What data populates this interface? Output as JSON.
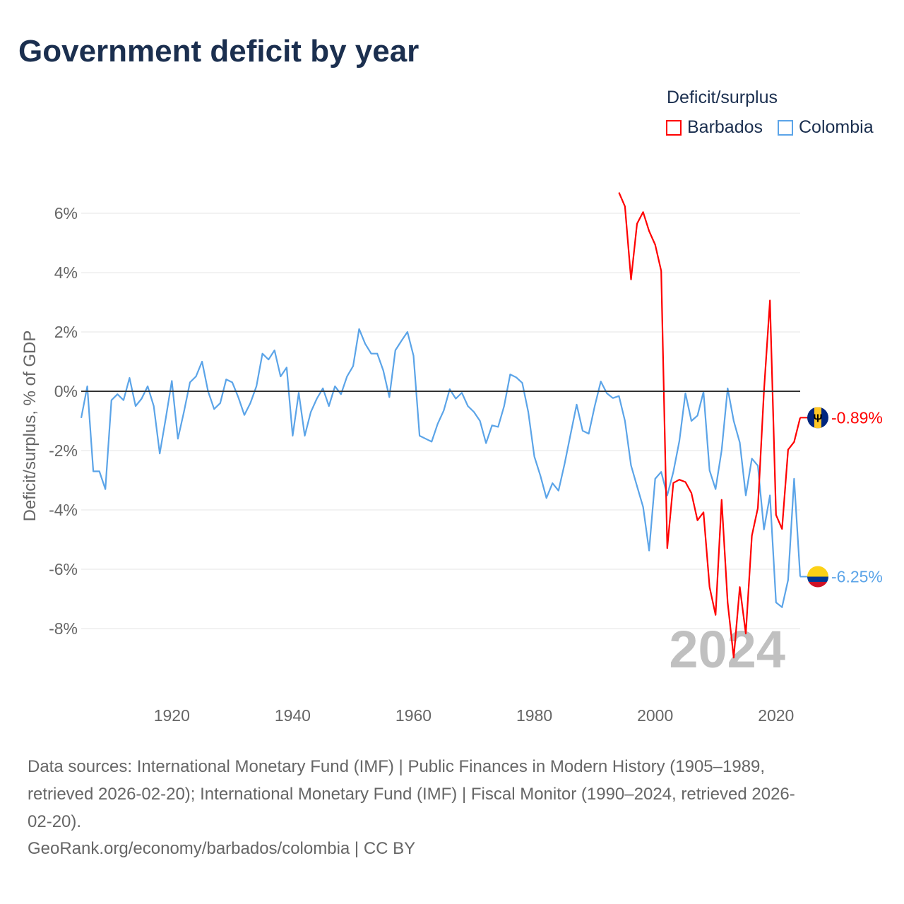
{
  "chart_data": {
    "type": "line",
    "title": "Government deficit by year",
    "xlabel": "",
    "ylabel": "Deficit/surplus, % of GDP",
    "xlim": [
      1905,
      2024
    ],
    "ylim": [
      -10,
      7
    ],
    "y_ticks": [
      6,
      4,
      2,
      0,
      -2,
      -4,
      -6,
      -8
    ],
    "y_tick_labels": [
      "6%",
      "4%",
      "2%",
      "0%",
      "-2%",
      "-4%",
      "-6%",
      "-8%"
    ],
    "x_ticks": [
      1920,
      1940,
      1960,
      1980,
      2000,
      2020
    ],
    "x_tick_labels": [
      "1920",
      "1940",
      "1960",
      "1980",
      "2000",
      "2020"
    ],
    "grid": true,
    "legend_title": "Deficit/surplus",
    "legend_position": "top-right",
    "year_watermark": "2024",
    "series": [
      {
        "name": "Barbados",
        "color": "#ff0000",
        "start_year": 1994,
        "end_label": "-0.89%",
        "values": [
          6.7,
          6.23,
          3.77,
          5.65,
          6.04,
          5.4,
          4.94,
          4.06,
          -5.29,
          -3.09,
          -2.98,
          -3.06,
          -3.43,
          -4.35,
          -4.08,
          -6.6,
          -7.54,
          -3.66,
          -7.12,
          -8.98,
          -6.6,
          -8.17,
          -4.87,
          -3.93,
          0.0,
          3.06,
          -4.17,
          -4.64,
          -1.97,
          -1.71,
          -0.89
        ]
      },
      {
        "name": "Colombia",
        "color": "#5ba4e8",
        "start_year": 1905,
        "end_label": "-6.25%",
        "values": [
          -0.9,
          0.17,
          -2.7,
          -2.7,
          -3.3,
          -0.3,
          -0.1,
          -0.3,
          0.45,
          -0.5,
          -0.25,
          0.17,
          -0.5,
          -2.1,
          -0.9,
          0.35,
          -1.6,
          -0.7,
          0.3,
          0.5,
          1.0,
          0.0,
          -0.6,
          -0.4,
          0.4,
          0.3,
          -0.2,
          -0.8,
          -0.4,
          0.17,
          1.27,
          1.07,
          1.38,
          0.5,
          0.8,
          -1.5,
          -0.05,
          -1.5,
          -0.7,
          -0.25,
          0.1,
          -0.5,
          0.17,
          -0.1,
          0.5,
          0.85,
          2.1,
          1.6,
          1.27,
          1.27,
          0.7,
          -0.2,
          1.38,
          1.7,
          2.0,
          1.2,
          -1.5,
          -1.6,
          -1.7,
          -1.1,
          -0.65,
          0.07,
          -0.25,
          -0.05,
          -0.5,
          -0.7,
          -1.0,
          -1.75,
          -1.15,
          -1.2,
          -0.5,
          0.57,
          0.47,
          0.28,
          -0.7,
          -2.2,
          -2.85,
          -3.6,
          -3.1,
          -3.35,
          -2.45,
          -1.45,
          -0.45,
          -1.33,
          -1.43,
          -0.5,
          0.33,
          -0.07,
          -0.23,
          -0.16,
          -1.0,
          -2.5,
          -3.2,
          -3.9,
          -5.37,
          -2.95,
          -2.72,
          -3.51,
          -2.72,
          -1.68,
          -0.07,
          -1.0,
          -0.82,
          -0.02,
          -2.67,
          -3.3,
          -1.99,
          0.1,
          -1.0,
          -1.73,
          -3.51,
          -2.27,
          -2.51,
          -4.66,
          -3.51,
          -7.12,
          -7.28,
          -6.36,
          -2.95,
          -6.25
        ]
      }
    ]
  },
  "footer": {
    "sources_line1": "Data sources: International Monetary Fund (IMF) | Public Finances in Modern History (1905–1989,",
    "sources_line2": "retrieved 2026-02-20); International Monetary Fund (IMF) | Fiscal Monitor (1990–2024, retrieved 2026-",
    "sources_line3": "02-20).",
    "attribution": "GeoRank.org/economy/barbados/colombia | CC BY"
  }
}
